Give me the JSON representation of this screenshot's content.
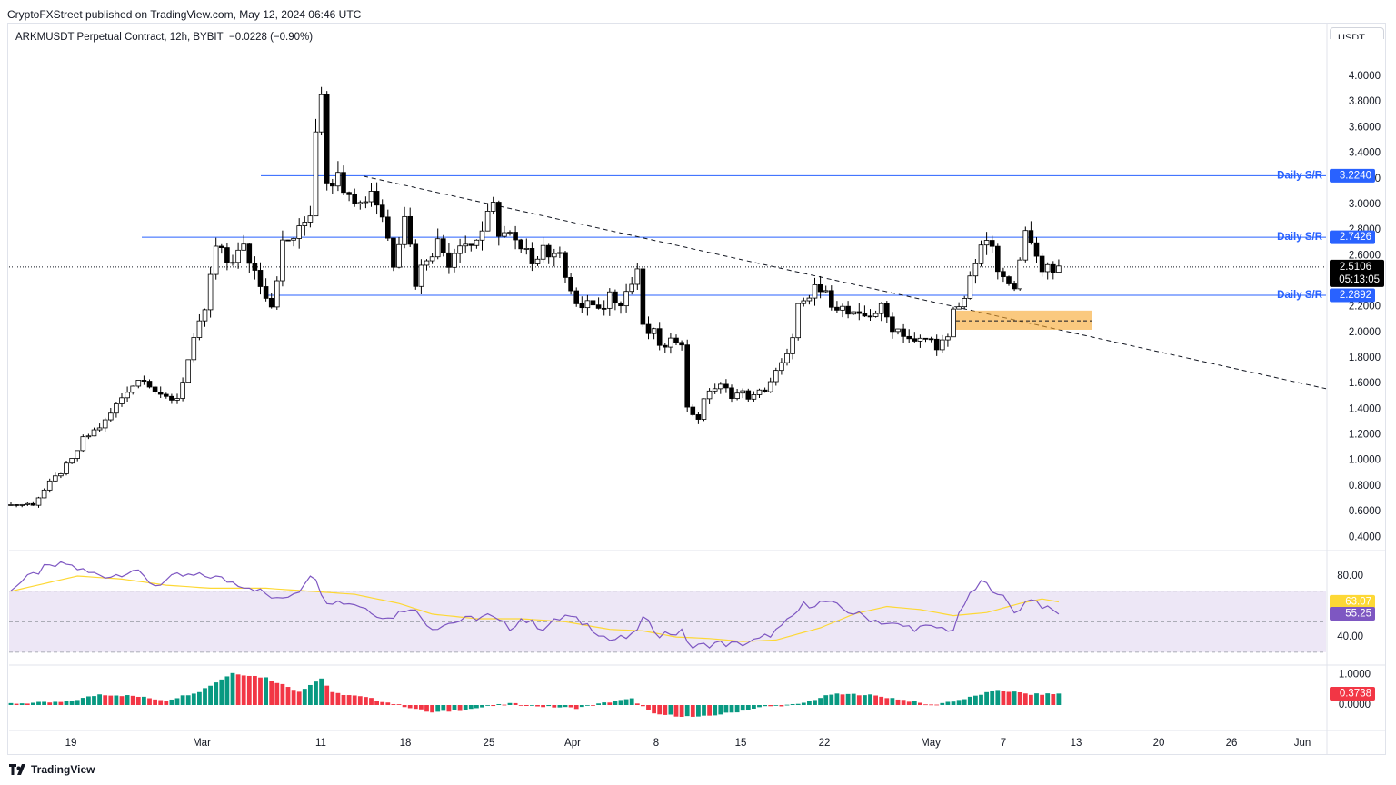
{
  "header": {
    "publisher": "CryptoFXStreet published on TradingView.com, May 12, 2024 06:46 UTC",
    "symbol": "ARKMUSDT Perpetual Contract, 12h, BYBIT",
    "change": "−0.0228 (−0.90%)",
    "currency": "USDT"
  },
  "footer": {
    "brand": "TradingView"
  },
  "colors": {
    "up_body": "#ffffff",
    "down_body": "#000000",
    "candle_outline": "#000000",
    "sr_line": "#2962ff",
    "zone": "#f7a529",
    "rsi": "#7e57c2",
    "rsi_ma": "#fdd835",
    "rsi_band": "#ede7f6",
    "hist_pos": "#089981",
    "hist_neg": "#f23645",
    "price_tag": "#000000"
  },
  "chart_data": [
    {
      "type": "candlestick",
      "pane": "price",
      "title": "ARKMUSDT Perpetual Contract, 12h, BYBIT",
      "ylim": [
        0.4,
        4.2
      ],
      "y_ticks": [
        "4.0000",
        "3.8000",
        "3.6000",
        "3.4000",
        "3.2000",
        "3.0000",
        "2.8000",
        "2.6000",
        "2.2000",
        "2.0000",
        "1.8000",
        "1.6000",
        "1.4000",
        "1.2000",
        "1.0000",
        "0.8000",
        "0.6000",
        "0.4000"
      ],
      "x_ticks": [
        "19",
        "Mar",
        "11",
        "18",
        "25",
        "Apr",
        "8",
        "15",
        "22",
        "May",
        "7",
        "13",
        "20",
        "26",
        "Jun"
      ],
      "last_price": "2.5106",
      "countdown": "05:13:05",
      "levels": [
        {
          "label": "Daily S/R",
          "value": "3.2240"
        },
        {
          "label": "Daily S/R",
          "value": "2.7426"
        },
        {
          "label": "Daily S/R",
          "value": "2.2892"
        }
      ],
      "trendline": {
        "from": 3.22,
        "to": 1.56,
        "style": "dashed"
      },
      "zone": {
        "low": 2.02,
        "high": 2.17,
        "mid": 2.09
      },
      "waypoints": [
        [
          0,
          0.65
        ],
        [
          5,
          0.66
        ],
        [
          8,
          0.82
        ],
        [
          12,
          1.0
        ],
        [
          14,
          1.16
        ],
        [
          18,
          1.3
        ],
        [
          22,
          1.56
        ],
        [
          25,
          1.66
        ],
        [
          28,
          1.48
        ],
        [
          31,
          1.49
        ],
        [
          33,
          1.78
        ],
        [
          36,
          2.18
        ],
        [
          38,
          2.66
        ],
        [
          40,
          2.55
        ],
        [
          43,
          2.65
        ],
        [
          46,
          2.4
        ],
        [
          48,
          2.22
        ],
        [
          50,
          2.68
        ],
        [
          53,
          2.78
        ],
        [
          55,
          2.95
        ],
        [
          56,
          3.6
        ],
        [
          57,
          3.92
        ],
        [
          58,
          3.22
        ],
        [
          60,
          3.2
        ],
        [
          62,
          3.14
        ],
        [
          64,
          3.0
        ],
        [
          66,
          3.12
        ],
        [
          68,
          2.92
        ],
        [
          70,
          2.55
        ],
        [
          72,
          2.95
        ],
        [
          74,
          2.4
        ],
        [
          76,
          2.6
        ],
        [
          78,
          2.7
        ],
        [
          80,
          2.56
        ],
        [
          82,
          2.73
        ],
        [
          84,
          2.68
        ],
        [
          86,
          2.8
        ],
        [
          88,
          2.97
        ],
        [
          89,
          2.8
        ],
        [
          91,
          2.75
        ],
        [
          93,
          2.62
        ],
        [
          95,
          2.58
        ],
        [
          97,
          2.68
        ],
        [
          99,
          2.56
        ],
        [
          100,
          2.68
        ],
        [
          101,
          2.47
        ],
        [
          103,
          2.18
        ],
        [
          105,
          2.24
        ],
        [
          107,
          2.14
        ],
        [
          109,
          2.3
        ],
        [
          111,
          2.26
        ],
        [
          113,
          2.38
        ],
        [
          114,
          2.5
        ],
        [
          115,
          2.02
        ],
        [
          117,
          1.98
        ],
        [
          119,
          1.86
        ],
        [
          121,
          1.96
        ],
        [
          122,
          1.95
        ],
        [
          123,
          1.4
        ],
        [
          125,
          1.34
        ],
        [
          127,
          1.56
        ],
        [
          129,
          1.57
        ],
        [
          131,
          1.52
        ],
        [
          133,
          1.52
        ],
        [
          135,
          1.49
        ],
        [
          137,
          1.56
        ],
        [
          139,
          1.68
        ],
        [
          141,
          1.8
        ],
        [
          143,
          2.2
        ],
        [
          145,
          2.22
        ],
        [
          146,
          2.36
        ],
        [
          148,
          2.28
        ],
        [
          150,
          2.22
        ],
        [
          152,
          2.14
        ],
        [
          154,
          2.1
        ],
        [
          156,
          2.15
        ],
        [
          158,
          2.18
        ],
        [
          160,
          2.05
        ],
        [
          162,
          2.0
        ],
        [
          164,
          1.91
        ],
        [
          166,
          1.95
        ],
        [
          168,
          1.91
        ],
        [
          170,
          1.93
        ],
        [
          171,
          2.15
        ],
        [
          173,
          2.25
        ],
        [
          174,
          2.48
        ],
        [
          176,
          2.62
        ],
        [
          177,
          2.74
        ],
        [
          178,
          2.61
        ],
        [
          179,
          2.48
        ],
        [
          181,
          2.34
        ],
        [
          182,
          2.4
        ],
        [
          183,
          2.62
        ],
        [
          184,
          2.74
        ],
        [
          186,
          2.6
        ],
        [
          187,
          2.52
        ],
        [
          189,
          2.51
        ]
      ]
    },
    {
      "type": "line",
      "pane": "rsi",
      "ylim": [
        28,
        92
      ],
      "y_ticks": [
        "80.00",
        "40.00"
      ],
      "bands": [
        70,
        50,
        30
      ],
      "series": [
        {
          "values_label": "63.07",
          "waypoints": [
            [
              0,
              72
            ],
            [
              6,
              85
            ],
            [
              10,
              88
            ],
            [
              14,
              82
            ],
            [
              18,
              80
            ],
            [
              22,
              84
            ],
            [
              26,
              74
            ],
            [
              30,
              80
            ],
            [
              36,
              80
            ],
            [
              40,
              76
            ],
            [
              44,
              72
            ],
            [
              48,
              64
            ],
            [
              52,
              71
            ],
            [
              54,
              82
            ],
            [
              57,
              64
            ],
            [
              62,
              62
            ],
            [
              68,
              52
            ],
            [
              72,
              60
            ],
            [
              76,
              46
            ],
            [
              80,
              50
            ],
            [
              86,
              54
            ],
            [
              90,
              46
            ],
            [
              92,
              52
            ],
            [
              96,
              46
            ],
            [
              100,
              54
            ],
            [
              104,
              48
            ],
            [
              108,
              38
            ],
            [
              112,
              40
            ],
            [
              114,
              52
            ],
            [
              117,
              42
            ],
            [
              121,
              43
            ],
            [
              123,
              33
            ],
            [
              127,
              36
            ],
            [
              131,
              35
            ],
            [
              135,
              38
            ],
            [
              139,
              46
            ],
            [
              143,
              61
            ],
            [
              147,
              63
            ],
            [
              151,
              57
            ],
            [
              155,
              52
            ],
            [
              159,
              48
            ],
            [
              163,
              46
            ],
            [
              167,
              46
            ],
            [
              170,
              45
            ],
            [
              172,
              62
            ],
            [
              175,
              76
            ],
            [
              178,
              70
            ],
            [
              181,
              56
            ],
            [
              184,
              66
            ],
            [
              187,
              58
            ],
            [
              189,
              56
            ]
          ]
        },
        {
          "values_label": "55.25",
          "waypoints": [
            [
              0,
              70
            ],
            [
              6,
              75
            ],
            [
              12,
              80
            ],
            [
              20,
              78
            ],
            [
              28,
              74
            ],
            [
              36,
              72
            ],
            [
              46,
              72
            ],
            [
              54,
              70
            ],
            [
              62,
              68
            ],
            [
              70,
              62
            ],
            [
              76,
              55
            ],
            [
              84,
              52
            ],
            [
              92,
              52
            ],
            [
              100,
              50
            ],
            [
              108,
              45
            ],
            [
              114,
              44
            ],
            [
              120,
              40
            ],
            [
              126,
              39
            ],
            [
              132,
              37
            ],
            [
              138,
              38
            ],
            [
              146,
              46
            ],
            [
              152,
              55
            ],
            [
              158,
              60
            ],
            [
              164,
              58
            ],
            [
              170,
              54
            ],
            [
              176,
              56
            ],
            [
              182,
              62
            ],
            [
              186,
              65
            ],
            [
              189,
              63
            ]
          ]
        }
      ]
    },
    {
      "type": "bar",
      "pane": "histogram",
      "ylim": [
        -0.4,
        1.2
      ],
      "y_ticks": [
        "1.0000",
        "0.0000"
      ],
      "last_value": "0.3738",
      "waypoints": [
        [
          0,
          0.05
        ],
        [
          10,
          0.1
        ],
        [
          16,
          0.35
        ],
        [
          22,
          0.3
        ],
        [
          28,
          0.15
        ],
        [
          34,
          0.45
        ],
        [
          40,
          1.05
        ],
        [
          46,
          0.9
        ],
        [
          52,
          0.45
        ],
        [
          56,
          0.88
        ],
        [
          58,
          0.4
        ],
        [
          64,
          0.25
        ],
        [
          70,
          0.0
        ],
        [
          76,
          -0.25
        ],
        [
          82,
          -0.15
        ],
        [
          90,
          0.05
        ],
        [
          96,
          -0.05
        ],
        [
          102,
          -0.1
        ],
        [
          108,
          0.1
        ],
        [
          112,
          0.2
        ],
        [
          116,
          -0.3
        ],
        [
          120,
          -0.35
        ],
        [
          124,
          -0.4
        ],
        [
          130,
          -0.25
        ],
        [
          136,
          -0.05
        ],
        [
          142,
          0.02
        ],
        [
          148,
          0.35
        ],
        [
          154,
          0.35
        ],
        [
          160,
          0.2
        ],
        [
          166,
          0.0
        ],
        [
          172,
          0.2
        ],
        [
          178,
          0.5
        ],
        [
          184,
          0.35
        ],
        [
          189,
          0.37
        ]
      ]
    }
  ]
}
